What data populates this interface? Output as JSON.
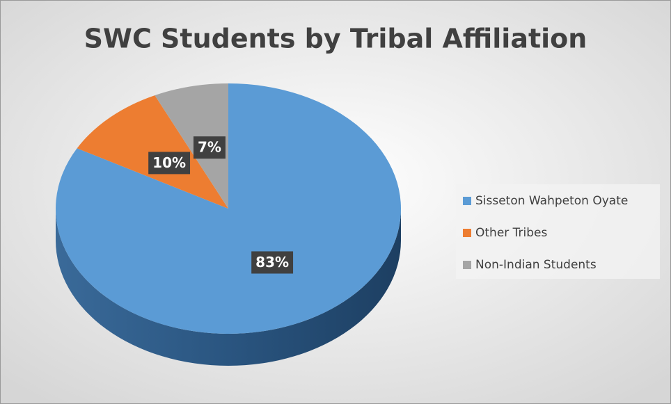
{
  "chart_data": {
    "type": "pie",
    "title": "SWC Students by Tribal Affiliation",
    "categories": [
      "Sisseton Wahpeton Oyate",
      "Other Tribes",
      "Non-Indian Students"
    ],
    "values": [
      83,
      10,
      7
    ],
    "value_labels": [
      "83%",
      "10%",
      "7%"
    ],
    "colors": [
      "#5b9bd5",
      "#ed7d31",
      "#a5a5a5"
    ],
    "legend": "right"
  }
}
